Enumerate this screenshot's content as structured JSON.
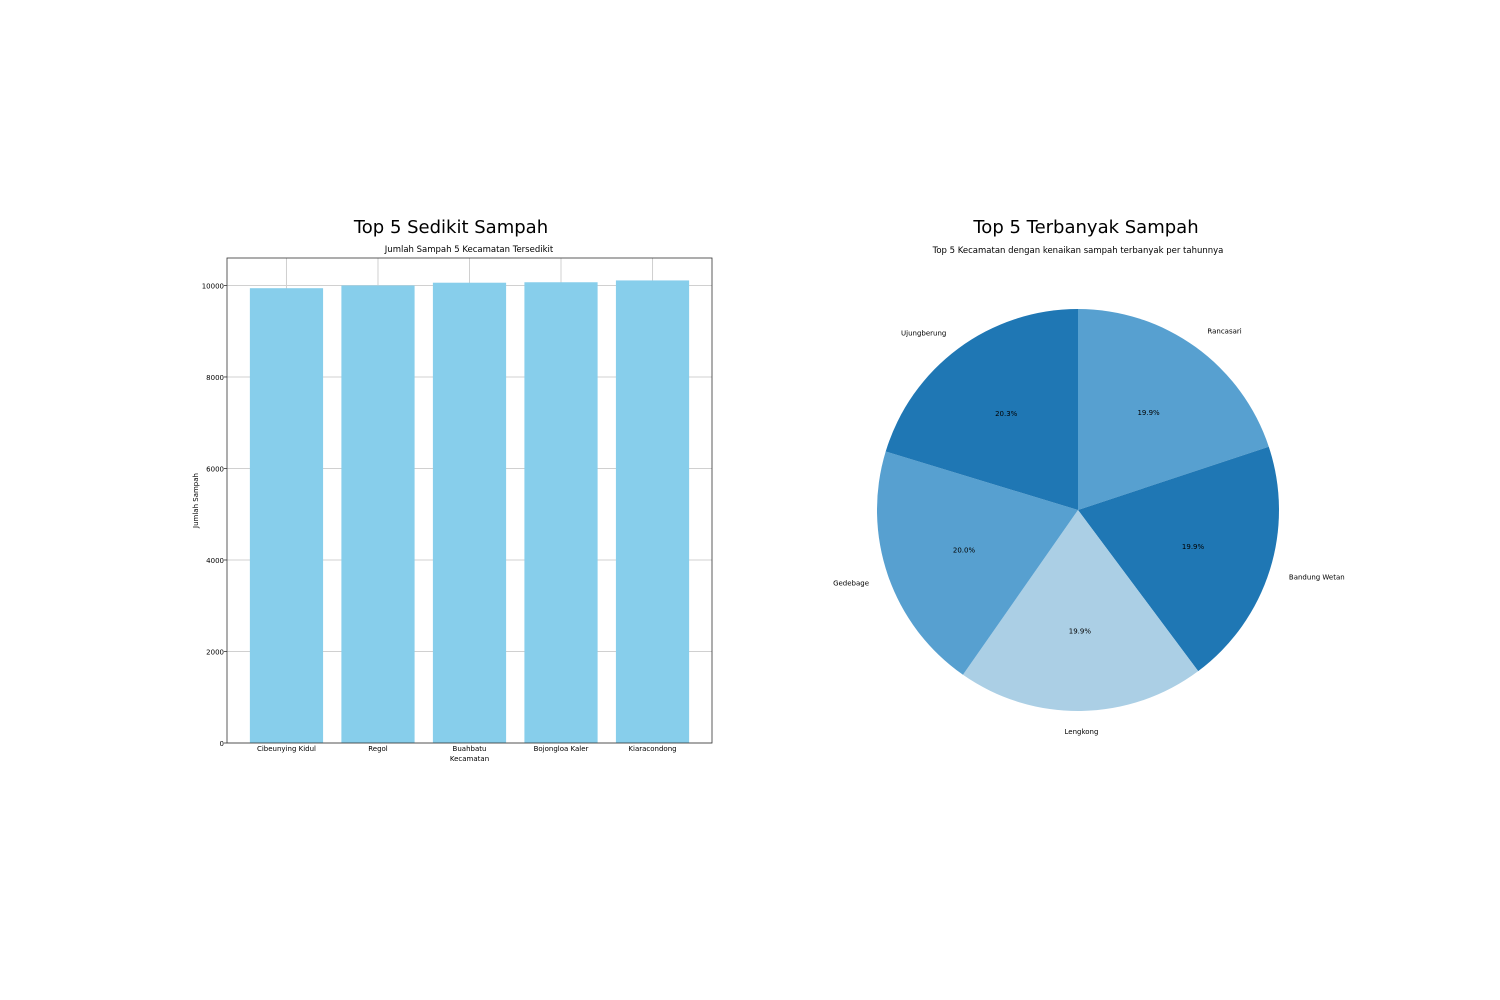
{
  "panels": {
    "left": {
      "suptitle": "Top 5 Sedikit Sampah"
    },
    "right": {
      "suptitle": "Top 5 Terbanyak Sampah"
    }
  },
  "chart_data": [
    {
      "type": "bar",
      "title": "Jumlah Sampah 5 Kecamatan Tersedikit",
      "xlabel": "Kecamatan",
      "ylabel": "Jumlah Sampah",
      "categories": [
        "Cibeunying Kidul",
        "Regol",
        "Buahbatu",
        "Bojongloa Kaler",
        "Kiaracondong"
      ],
      "values": [
        9940,
        10000,
        10060,
        10070,
        10110
      ],
      "ylim": [
        0,
        10600
      ],
      "yticks": [
        0,
        2000,
        4000,
        6000,
        8000,
        10000
      ],
      "grid": true,
      "bar_color": "#87ceeb"
    },
    {
      "type": "pie",
      "title": "Top 5 Kecamatan dengan kenaikan sampah terbanyak per tahunnya",
      "labels": [
        "Rancasari",
        "Bandung Wetan",
        "Lengkong",
        "Gedebage",
        "Ujungberung"
      ],
      "values": [
        19.9,
        19.9,
        19.9,
        20.0,
        20.3
      ],
      "pct_labels": [
        "19.9%",
        "19.9%",
        "19.9%",
        "20.0%",
        "20.3%"
      ],
      "colors": [
        "#57a0d0",
        "#1f77b4",
        "#abcfe5",
        "#57a0d0",
        "#1f77b4"
      ],
      "start_angle_deg": 90,
      "direction": "clockwise"
    }
  ]
}
